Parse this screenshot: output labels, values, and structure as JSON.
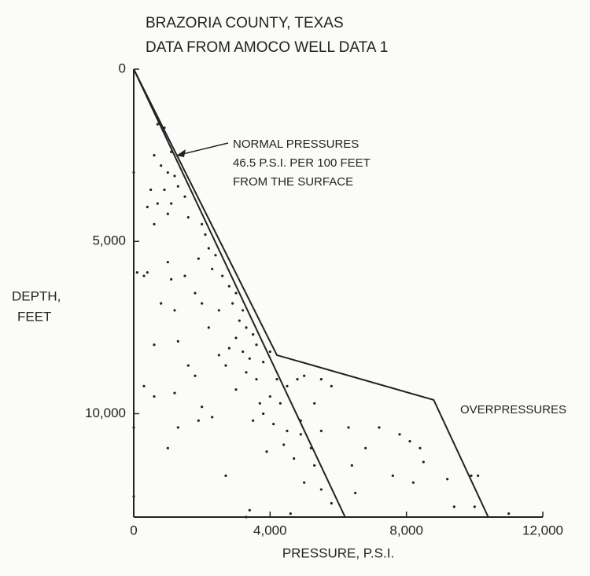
{
  "chart_data": {
    "type": "scatter",
    "title": [
      "BRAZORIA COUNTY, TEXAS",
      "DATA FROM AMOCO WELL DATA 1"
    ],
    "x_label": "PRESSURE, P.S.I.",
    "y_label": [
      "DEPTH,",
      "FEET"
    ],
    "annotations": [
      {
        "text": [
          "NORMAL PRESSURES",
          "46.5 P.S.I. PER 100 FEET",
          "FROM THE SURFACE"
        ]
      },
      {
        "text": [
          "OVERPRESSURES"
        ]
      }
    ],
    "xlim": [
      0,
      12000
    ],
    "ylim": [
      13000,
      0
    ],
    "xticks": [
      0,
      {
        "value": 4000,
        "label": "4,000"
      },
      {
        "value": 8000,
        "label": "8,000"
      },
      {
        "value": 12000,
        "label": "12,000"
      }
    ],
    "yticks": [
      0,
      {
        "value": 5000,
        "label": "5,000"
      },
      {
        "value": 10000,
        "label": "10,000"
      }
    ],
    "color": "#222222",
    "x": [
      700,
      900,
      600,
      1100,
      800,
      1000,
      1200,
      500,
      900,
      1300,
      700,
      1100,
      400,
      1500,
      600,
      1000,
      1600,
      0,
      2000,
      2100,
      2200,
      2400,
      1900,
      2300,
      100,
      300,
      400,
      1000,
      1500,
      2600,
      2800,
      3000,
      2900,
      3200,
      3100,
      1800,
      2500,
      1200,
      800,
      2200,
      3300,
      3500,
      3000,
      600,
      1300,
      2800,
      3200,
      3600,
      3400,
      3800,
      4000,
      3300,
      2700,
      1600,
      1800,
      3600,
      4200,
      4500,
      4800,
      5000,
      5500,
      5800,
      4000,
      3700,
      2000,
      1200,
      300,
      600,
      2300,
      1900,
      3500,
      4100,
      4500,
      4900,
      5500,
      6300,
      7200,
      7800,
      8100,
      8400,
      6800,
      5200,
      4400,
      3900,
      4700,
      5300,
      5000,
      5500,
      5800,
      6400,
      7600,
      8200,
      8500,
      9200,
      9900,
      10100,
      9400,
      10000,
      11000,
      4600,
      3400,
      3300,
      2700,
      1000,
      0,
      1300,
      0,
      5300,
      4900,
      3000,
      2500,
      1100,
      2000,
      4300,
      3800,
      6500
    ],
    "values": [
      1600,
      1700,
      2500,
      2400,
      2800,
      3000,
      3100,
      3500,
      3500,
      3400,
      3900,
      3900,
      4000,
      3700,
      4500,
      4200,
      4300,
      3000,
      4500,
      4800,
      5200,
      5400,
      5500,
      5800,
      5900,
      6000,
      5900,
      5600,
      6000,
      6000,
      6300,
      6500,
      6800,
      7000,
      7300,
      6500,
      7000,
      7000,
      6800,
      7500,
      7500,
      7700,
      7800,
      8000,
      7900,
      8100,
      8200,
      8000,
      8400,
      8500,
      8200,
      8800,
      8600,
      8600,
      8900,
      9000,
      9000,
      9200,
      9000,
      8900,
      9000,
      9200,
      9500,
      9700,
      9800,
      9400,
      9200,
      9500,
      10100,
      10200,
      10200,
      10300,
      10500,
      10600,
      10500,
      10400,
      10400,
      10600,
      10800,
      11000,
      11000,
      11000,
      10900,
      11100,
      11300,
      11500,
      12000,
      12200,
      12600,
      11500,
      11800,
      12000,
      11400,
      11900,
      11800,
      11800,
      12700,
      12700,
      12900,
      12900,
      12800,
      13000,
      11800,
      11000,
      10400,
      10400,
      12400,
      9700,
      10200,
      9300,
      8300,
      6100,
      6800,
      9700,
      10000,
      12300
    ],
    "lines": [
      {
        "x": [
          0,
          6200
        ],
        "values": [
          0,
          13000
        ]
      },
      {
        "x": [
          0,
          4200,
          8800,
          10400
        ],
        "values": [
          0,
          8300,
          9600,
          13000
        ]
      }
    ]
  }
}
